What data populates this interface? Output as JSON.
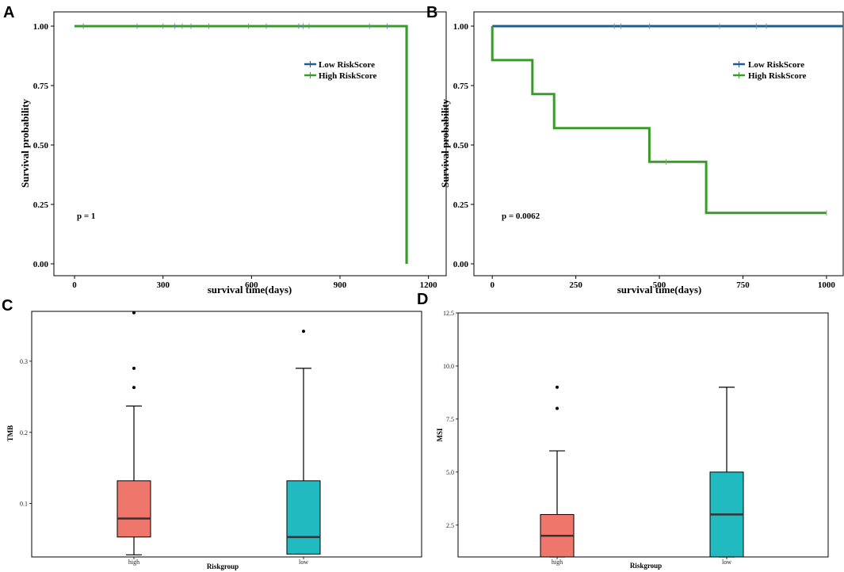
{
  "chart_data": [
    {
      "panel": "A",
      "type": "line",
      "subtype": "kaplan-meier",
      "xlabel": "survival time(days)",
      "ylabel": "Survival probability",
      "xlim": [
        -70,
        1260
      ],
      "ylim": [
        -0.05,
        1.06
      ],
      "xticks": [
        0,
        300,
        600,
        900,
        1200
      ],
      "yticks": [
        0.0,
        0.25,
        0.5,
        0.75,
        1.0
      ],
      "ytick_labels": [
        "0.00",
        "0.25",
        "0.50",
        "0.75",
        "1.00"
      ],
      "pvalue": "p = 1",
      "legend_position": "right",
      "series": [
        {
          "name": "Low RiskScore",
          "color": "#1f5f8b",
          "steps": [
            [
              0,
              1.0
            ],
            [
              1126,
              1.0
            ],
            [
              1126,
              0.0
            ]
          ],
          "censor_x": [
            30,
            212,
            300,
            340,
            365,
            395,
            455,
            590,
            650,
            760,
            775,
            795,
            1000,
            1060
          ]
        },
        {
          "name": "High RiskScore",
          "color": "#3a9a2a",
          "steps": [
            [
              0,
              1.0
            ],
            [
              1126,
              1.0
            ],
            [
              1126,
              0.0
            ]
          ],
          "censor_x": []
        }
      ]
    },
    {
      "panel": "B",
      "type": "line",
      "subtype": "kaplan-meier",
      "xlabel": "survival time(days)",
      "ylabel": "Survival probability",
      "xlim": [
        -55,
        1050
      ],
      "ylim": [
        -0.05,
        1.06
      ],
      "xticks": [
        0,
        250,
        500,
        750,
        1000
      ],
      "yticks": [
        0.0,
        0.25,
        0.5,
        0.75,
        1.0
      ],
      "ytick_labels": [
        "0.00",
        "0.25",
        "0.50",
        "0.75",
        "1.00"
      ],
      "pvalue": "p = 0.0062",
      "legend_position": "right",
      "series": [
        {
          "name": "Low RiskScore",
          "color": "#1f5f8b",
          "steps": [
            [
              0,
              1.0
            ],
            [
              1050,
              1.0
            ]
          ],
          "censor_x": [
            365,
            385,
            470,
            680,
            790,
            820
          ]
        },
        {
          "name": "High RiskScore",
          "color": "#3a9a2a",
          "steps": [
            [
              0,
              1.0
            ],
            [
              0,
              0.857
            ],
            [
              120,
              0.857
            ],
            [
              120,
              0.714
            ],
            [
              185,
              0.714
            ],
            [
              185,
              0.571
            ],
            [
              470,
              0.571
            ],
            [
              470,
              0.429
            ],
            [
              640,
              0.429
            ],
            [
              640,
              0.214
            ],
            [
              1000,
              0.214
            ]
          ],
          "censor_x": [
            520,
            1000
          ]
        }
      ]
    },
    {
      "panel": "C",
      "type": "box",
      "xlabel": "Riskgroup",
      "ylabel": "TMB",
      "categories": [
        "high",
        "low"
      ],
      "ylim": [
        0.025,
        0.37
      ],
      "yticks": [
        0.1,
        0.2,
        0.3
      ],
      "ytick_labels": [
        "0.1",
        "0.2",
        "0.3"
      ],
      "boxes": [
        {
          "group": "high",
          "color": "#ee766b",
          "min": 0.028,
          "q1": 0.053,
          "median": 0.079,
          "q3": 0.132,
          "max": 0.237,
          "outliers": [
            0.263,
            0.29,
            0.368
          ]
        },
        {
          "group": "low",
          "color": "#20bac0",
          "min": 0.029,
          "q1": 0.029,
          "median": 0.053,
          "q3": 0.132,
          "max": 0.29,
          "outliers": [
            0.342
          ]
        }
      ]
    },
    {
      "panel": "D",
      "type": "box",
      "xlabel": "Riskgroup",
      "ylabel": "MSI",
      "categories": [
        "high",
        "low"
      ],
      "ylim": [
        1.0,
        12.5
      ],
      "yticks": [
        2.5,
        5.0,
        7.5,
        10.0,
        12.5
      ],
      "ytick_labels": [
        "2.5",
        "5.0",
        "7.5",
        "10.0",
        "12.5"
      ],
      "boxes": [
        {
          "group": "high",
          "color": "#ee766b",
          "min": 1.0,
          "q1": 1.0,
          "median": 2.0,
          "q3": 3.0,
          "max": 6.0,
          "outliers": [
            8.0,
            9.0
          ]
        },
        {
          "group": "low",
          "color": "#20bac0",
          "min": 1.0,
          "q1": 1.0,
          "median": 3.0,
          "q3": 5.0,
          "max": 9.0,
          "outliers": []
        }
      ]
    }
  ]
}
